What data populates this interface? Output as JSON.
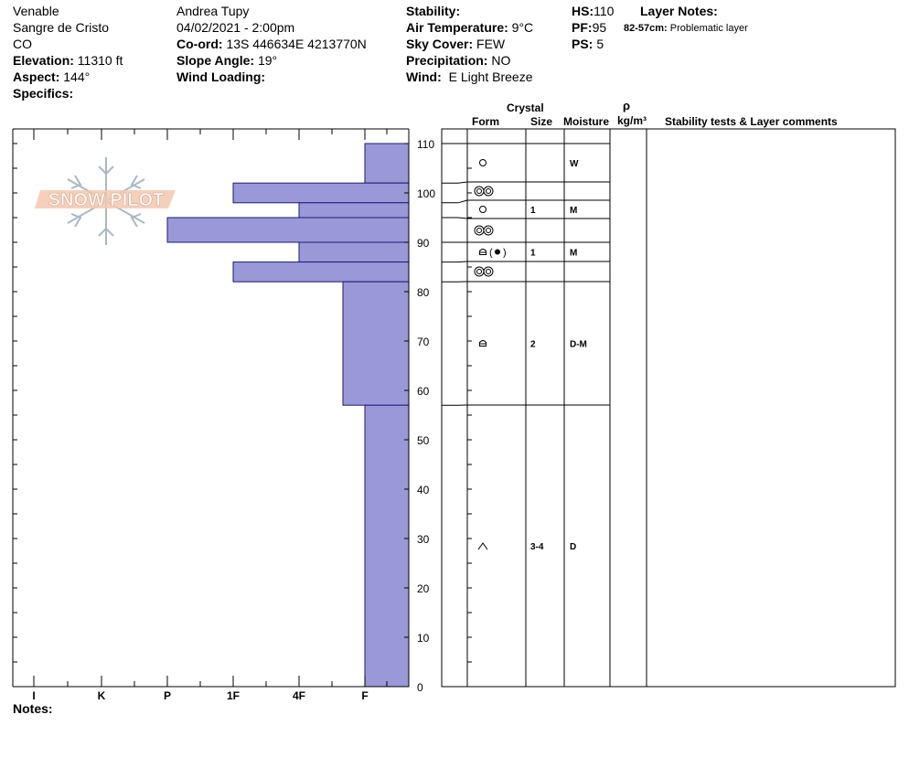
{
  "header": {
    "location": "Venable",
    "range": "Sangre de Cristo",
    "state": "CO",
    "elevation_label": "Elevation:",
    "elevation": "11310 ft",
    "aspect_label": "Aspect:",
    "aspect": "144°",
    "specifics_label": "Specifics:",
    "observer": "Andrea Tupy",
    "datetime": "04/02/2021 - 2:00pm",
    "coord_label": "Co-ord:",
    "coord": "13S 446634E 4213770N",
    "slope_label": "Slope Angle:",
    "slope": "19°",
    "wind_loading_label": "Wind Loading:",
    "stability_label": "Stability:",
    "air_temp_label": "Air Temperature:",
    "air_temp": "9°C",
    "sky_label": "Sky Cover:",
    "sky": "FEW",
    "precip_label": "Precipitation:",
    "precip": "NO",
    "wind_label": "Wind:",
    "wind": "E Light Breeze",
    "hs_label": "HS:",
    "hs": "110",
    "pf_label": "PF:",
    "pf": "95",
    "ps_label": "PS:",
    "ps": "5",
    "layer_notes_label": "Layer Notes:",
    "layer_note_range": "82-57cm:",
    "layer_note_text": "Problematic layer"
  },
  "logo_text": "SNOW PILOT",
  "table_headers": {
    "crystal": "Crystal",
    "form": "Form",
    "size": "Size",
    "moisture": "Moisture",
    "rho": "ρ",
    "density_unit": "kg/m³",
    "stability": "Stability tests & Layer comments"
  },
  "notes_label": "Notes:",
  "colors": {
    "bar_fill": "#9a98d6",
    "bar_stroke": "#1a1a80"
  },
  "chart_data": {
    "type": "bar",
    "orientation": "horizontal",
    "y_axis": {
      "label": "",
      "range": [
        0,
        110
      ],
      "ticks": [
        0,
        10,
        20,
        30,
        40,
        50,
        60,
        70,
        80,
        90,
        100,
        110
      ]
    },
    "x_axis": {
      "categories": [
        "I",
        "K",
        "P",
        "1F",
        "4F",
        "F"
      ],
      "reversed": true
    },
    "hardness_layers": [
      {
        "top": 110,
        "bottom": 102,
        "hardness": "F"
      },
      {
        "top": 102,
        "bottom": 98,
        "hardness": "1F"
      },
      {
        "top": 98,
        "bottom": 95,
        "hardness": "4F"
      },
      {
        "top": 95,
        "bottom": 90,
        "hardness": "P"
      },
      {
        "top": 90,
        "bottom": 86,
        "hardness": "4F"
      },
      {
        "top": 86,
        "bottom": 82,
        "hardness": "1F"
      },
      {
        "top": 82,
        "bottom": 57,
        "hardness": "4F-F"
      },
      {
        "top": 57,
        "bottom": 0,
        "hardness": "F"
      }
    ],
    "hardness_levels": {
      "F": 1,
      "4F-F": 1.5,
      "4F": 2,
      "1F": 3,
      "P": 4
    },
    "strata": [
      {
        "top": 110,
        "bottom": 102,
        "form": "ring",
        "size": "",
        "moisture": "W"
      },
      {
        "top": 102,
        "bottom": 98,
        "form": "double-ring",
        "size": "",
        "moisture": ""
      },
      {
        "top": 98,
        "bottom": 95,
        "form": "ring",
        "size": "1",
        "moisture": "M"
      },
      {
        "top": 95,
        "bottom": 90,
        "form": "double-ring",
        "size": "",
        "moisture": ""
      },
      {
        "top": 90,
        "bottom": 86,
        "form": "faceted-with-melt",
        "size": "1",
        "moisture": "M"
      },
      {
        "top": 86,
        "bottom": 82,
        "form": "double-ring",
        "size": "",
        "moisture": ""
      },
      {
        "top": 82,
        "bottom": 57,
        "form": "faceted",
        "size": "2",
        "moisture": "D-M"
      },
      {
        "top": 57,
        "bottom": 0,
        "form": "depth-hoar",
        "size": "3-4",
        "moisture": "D"
      }
    ]
  }
}
